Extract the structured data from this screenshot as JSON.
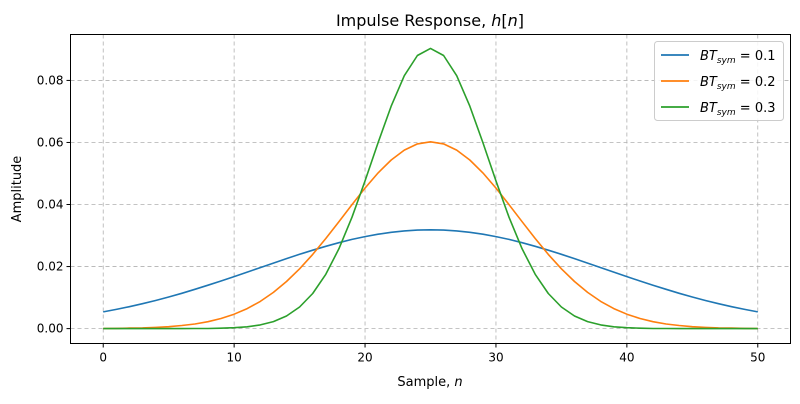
{
  "chart_data": {
    "type": "line",
    "title": "Impulse Response, h[n]",
    "xlabel": "Sample, n",
    "ylabel": "Amplitude",
    "xlim": [
      -2.5,
      52.5
    ],
    "ylim": [
      -0.0048,
      0.0948
    ],
    "xticks": [
      0,
      10,
      20,
      30,
      40,
      50
    ],
    "yticks": [
      0.0,
      0.02,
      0.04,
      0.06,
      0.08
    ],
    "ytick_labels": [
      "0.00",
      "0.02",
      "0.04",
      "0.06",
      "0.08"
    ],
    "grid": true,
    "legend_position": "top-right",
    "x": [
      0,
      1,
      2,
      3,
      4,
      5,
      6,
      7,
      8,
      9,
      10,
      11,
      12,
      13,
      14,
      15,
      16,
      17,
      18,
      19,
      20,
      21,
      22,
      23,
      24,
      25,
      26,
      27,
      28,
      29,
      30,
      31,
      32,
      33,
      34,
      35,
      36,
      37,
      38,
      39,
      40,
      41,
      42,
      43,
      44,
      45,
      46,
      47,
      48,
      49,
      50
    ],
    "series": [
      {
        "name": "BT_sym = 0.1",
        "color": "#1f77b4",
        "values": [
          0.00537,
          0.00618,
          0.00706,
          0.00803,
          0.00907,
          0.01019,
          0.01139,
          0.01266,
          0.01398,
          0.01536,
          0.01678,
          0.01822,
          0.01968,
          0.02113,
          0.02256,
          0.02395,
          0.02528,
          0.02654,
          0.02769,
          0.02874,
          0.02965,
          0.03042,
          0.03103,
          0.03148,
          0.03175,
          0.03184,
          0.03175,
          0.03148,
          0.03103,
          0.03042,
          0.02965,
          0.02874,
          0.02769,
          0.02654,
          0.02528,
          0.02395,
          0.02256,
          0.02113,
          0.01968,
          0.01822,
          0.01678,
          0.01536,
          0.01398,
          0.01266,
          0.01139,
          0.01019,
          0.00907,
          0.00803,
          0.00706,
          0.00618,
          0.00537
        ]
      },
      {
        "name": "BT_sym = 0.2",
        "color": "#ff7f0e",
        "values": [
          5e-05,
          8e-05,
          0.00015,
          0.00024,
          0.0004,
          0.00063,
          0.00099,
          0.0015,
          0.00224,
          0.00326,
          0.00464,
          0.00646,
          0.00878,
          0.01167,
          0.01517,
          0.01927,
          0.02393,
          0.02905,
          0.03446,
          0.03996,
          0.0453,
          0.05018,
          0.05435,
          0.05754,
          0.05954,
          0.06022,
          0.05954,
          0.05754,
          0.05435,
          0.05018,
          0.0453,
          0.03996,
          0.03446,
          0.02905,
          0.02393,
          0.01927,
          0.01517,
          0.01167,
          0.00878,
          0.00646,
          0.00464,
          0.00326,
          0.00224,
          0.0015,
          0.00099,
          0.00063,
          0.0004,
          0.00024,
          0.00015,
          8e-05,
          5e-05
        ]
      },
      {
        "name": "BT_sym = 0.3",
        "color": "#2ca02c",
        "values": [
          0,
          0,
          0,
          0,
          0,
          0,
          1e-05,
          2e-05,
          5e-05,
          0.00013,
          0.00028,
          0.00059,
          0.00119,
          0.00225,
          0.00406,
          0.00696,
          0.01132,
          0.01751,
          0.02572,
          0.0359,
          0.04759,
          0.05994,
          0.07172,
          0.08153,
          0.08804,
          0.09033,
          0.08804,
          0.08153,
          0.07172,
          0.05994,
          0.04759,
          0.0359,
          0.02572,
          0.01751,
          0.01132,
          0.00696,
          0.00406,
          0.00225,
          0.00119,
          0.00059,
          0.00028,
          0.00013,
          5e-05,
          2e-05,
          1e-05,
          0,
          0,
          0,
          0,
          0,
          0
        ]
      }
    ]
  }
}
